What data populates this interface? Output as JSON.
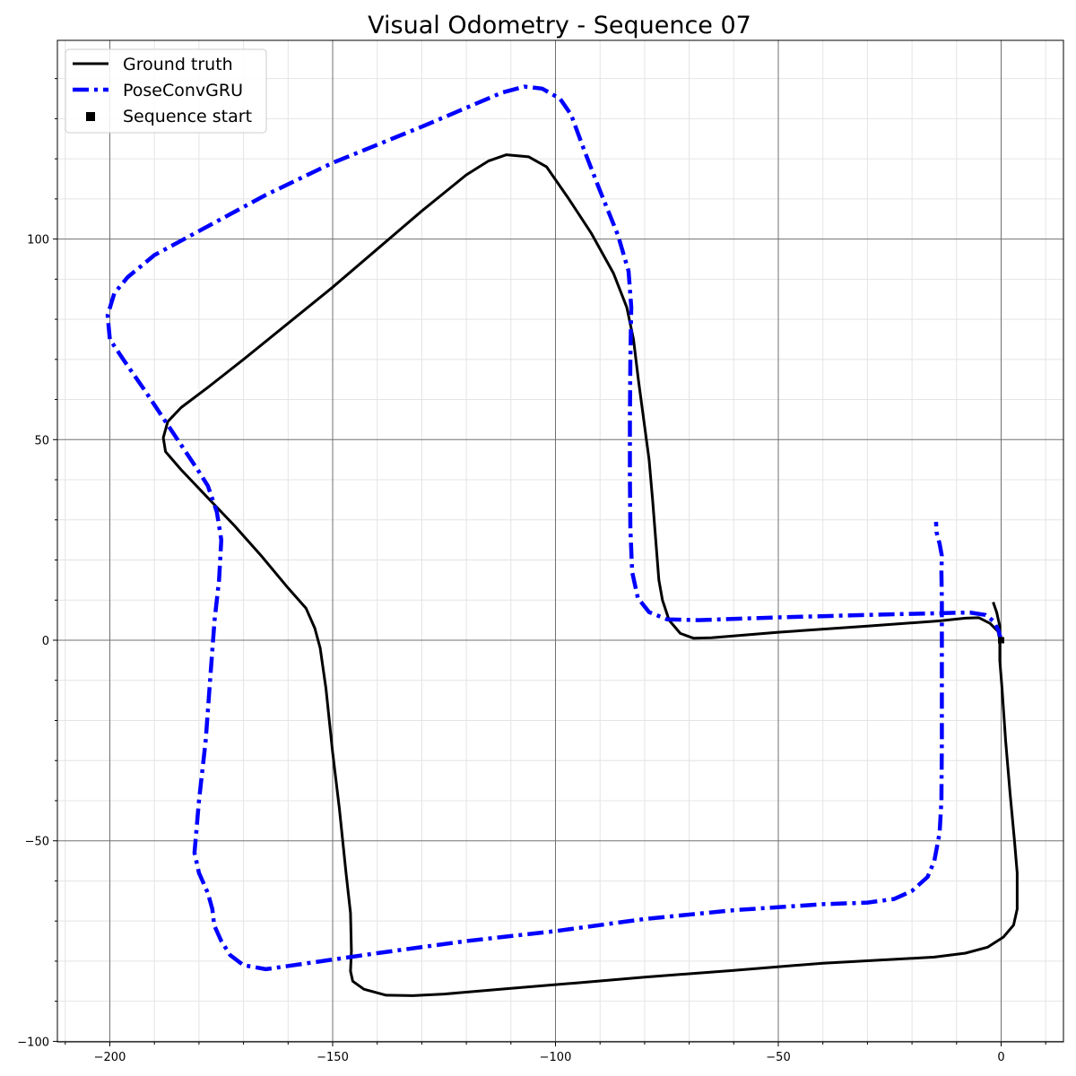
{
  "chart_data": {
    "type": "line",
    "title": "Visual Odometry - Sequence 07",
    "xlabel": "",
    "ylabel": "",
    "xlim": [
      -211,
      14
    ],
    "ylim": [
      -100,
      150
    ],
    "grid": "major and minor",
    "legend_placement": "top-left",
    "xticks": [
      -200,
      -150,
      -100,
      -50,
      0
    ],
    "yticks": [
      -100,
      -50,
      0,
      50,
      100
    ],
    "series": [
      {
        "name": "Ground truth",
        "color": "#000000",
        "style": "solid",
        "points": [
          [
            -1.8,
            9.5
          ],
          [
            -1,
            7
          ],
          [
            -0.3,
            3.5
          ],
          [
            -0.3,
            0
          ],
          [
            -0.3,
            -5
          ],
          [
            0.2,
            -12
          ],
          [
            1,
            -25
          ],
          [
            2,
            -38
          ],
          [
            3,
            -50
          ],
          [
            3.6,
            -58
          ],
          [
            3.6,
            -67
          ],
          [
            2.8,
            -71
          ],
          [
            0.5,
            -74
          ],
          [
            -3,
            -76.5
          ],
          [
            -8,
            -78
          ],
          [
            -15,
            -79
          ],
          [
            -40,
            -80.5
          ],
          [
            -60,
            -82.3
          ],
          [
            -80,
            -84
          ],
          [
            -95,
            -85.4
          ],
          [
            -110,
            -86.8
          ],
          [
            -125,
            -88.2
          ],
          [
            -132,
            -88.6
          ],
          [
            -138,
            -88.5
          ],
          [
            -143,
            -87
          ],
          [
            -145.5,
            -85
          ],
          [
            -146,
            -82.5
          ],
          [
            -145.8,
            -77.5
          ],
          [
            -146,
            -68
          ],
          [
            -147,
            -58
          ],
          [
            -148.5,
            -42
          ],
          [
            -150,
            -28
          ],
          [
            -151.5,
            -12
          ],
          [
            -152.8,
            -2
          ],
          [
            -154,
            3
          ],
          [
            -156,
            8
          ],
          [
            -160,
            13
          ],
          [
            -166,
            21
          ],
          [
            -172,
            28.5
          ],
          [
            -178,
            35.5
          ],
          [
            -184,
            42.5
          ],
          [
            -187.5,
            47
          ],
          [
            -188,
            50.5
          ],
          [
            -187,
            54.5
          ],
          [
            -184,
            58
          ],
          [
            -178,
            63
          ],
          [
            -170,
            70
          ],
          [
            -160,
            79
          ],
          [
            -150,
            88
          ],
          [
            -140,
            97.5
          ],
          [
            -130,
            107
          ],
          [
            -120,
            116
          ],
          [
            -115,
            119.5
          ],
          [
            -111,
            121
          ],
          [
            -106,
            120.5
          ],
          [
            -102,
            118
          ],
          [
            -97,
            110
          ],
          [
            -92,
            101.5
          ],
          [
            -87,
            91.5
          ],
          [
            -84,
            83
          ],
          [
            -82.5,
            75
          ],
          [
            -81.4,
            65
          ],
          [
            -80.2,
            55
          ],
          [
            -79,
            45
          ],
          [
            -78.2,
            35
          ],
          [
            -77.5,
            25
          ],
          [
            -76.8,
            15
          ],
          [
            -76,
            10
          ],
          [
            -74.5,
            5
          ],
          [
            -72,
            1.7
          ],
          [
            -69,
            0.5
          ],
          [
            -65,
            0.6
          ],
          [
            -50,
            2
          ],
          [
            -30,
            3.5
          ],
          [
            -14,
            4.8
          ],
          [
            -8,
            5.5
          ],
          [
            -5,
            5.6
          ],
          [
            -2.5,
            4.2
          ],
          [
            -0.7,
            2.2
          ],
          [
            -0.3,
            0
          ]
        ]
      },
      {
        "name": "PoseConvGRU",
        "color": "#0000ff",
        "style": "dashdot",
        "points": [
          [
            0,
            0
          ],
          [
            -0.6,
            2.5
          ],
          [
            -1.8,
            4.8
          ],
          [
            -3.5,
            6.3
          ],
          [
            -7,
            6.9
          ],
          [
            -12,
            6.8
          ],
          [
            -30,
            6.3
          ],
          [
            -50,
            5.7
          ],
          [
            -68,
            5
          ],
          [
            -75,
            5.2
          ],
          [
            -79,
            7
          ],
          [
            -81.5,
            10.5
          ],
          [
            -82.8,
            17
          ],
          [
            -83.2,
            28
          ],
          [
            -83.3,
            40
          ],
          [
            -83.3,
            55
          ],
          [
            -83.2,
            70
          ],
          [
            -83,
            83
          ],
          [
            -83.6,
            92
          ],
          [
            -86,
            101
          ],
          [
            -90,
            112
          ],
          [
            -93.5,
            122
          ],
          [
            -96.5,
            131
          ],
          [
            -99,
            135
          ],
          [
            -103,
            137.5
          ],
          [
            -107,
            138
          ],
          [
            -112,
            136.5
          ],
          [
            -130,
            128
          ],
          [
            -150,
            119
          ],
          [
            -165,
            111
          ],
          [
            -180,
            102
          ],
          [
            -190,
            96
          ],
          [
            -196,
            90.5
          ],
          [
            -199,
            86.5
          ],
          [
            -200.5,
            81
          ],
          [
            -200,
            75
          ],
          [
            -197,
            70
          ],
          [
            -192,
            62
          ],
          [
            -186,
            52
          ],
          [
            -180,
            42
          ],
          [
            -178,
            38.5
          ],
          [
            -176,
            32
          ],
          [
            -175,
            25
          ],
          [
            -175.5,
            15
          ],
          [
            -176.5,
            5
          ],
          [
            -177.5,
            -10
          ],
          [
            -178.5,
            -25
          ],
          [
            -180,
            -40
          ],
          [
            -181,
            -53
          ],
          [
            -180,
            -58
          ],
          [
            -178,
            -63
          ],
          [
            -177,
            -67
          ],
          [
            -176.6,
            -71
          ],
          [
            -175,
            -75
          ],
          [
            -173,
            -78.5
          ],
          [
            -170,
            -81
          ],
          [
            -165,
            -82
          ],
          [
            -160,
            -81.2
          ],
          [
            -140,
            -78
          ],
          [
            -120,
            -75
          ],
          [
            -100,
            -72.5
          ],
          [
            -80,
            -69.5
          ],
          [
            -60,
            -67.3
          ],
          [
            -40,
            -65.8
          ],
          [
            -30,
            -65.4
          ],
          [
            -24,
            -64.5
          ],
          [
            -20,
            -62.5
          ],
          [
            -16.5,
            -59
          ],
          [
            -15,
            -55
          ],
          [
            -13.8,
            -48
          ],
          [
            -13.4,
            -40
          ],
          [
            -13.3,
            -25
          ],
          [
            -13.3,
            -10
          ],
          [
            -13.3,
            0
          ],
          [
            -13.3,
            10
          ],
          [
            -13.4,
            17
          ],
          [
            -13.3,
            21
          ],
          [
            -13.8,
            24
          ],
          [
            -14.5,
            27
          ],
          [
            -14.6,
            29.5
          ]
        ]
      }
    ],
    "markers": [
      {
        "name": "Sequence start",
        "color": "#000000",
        "shape": "square",
        "x": 0,
        "y": 0
      }
    ]
  }
}
